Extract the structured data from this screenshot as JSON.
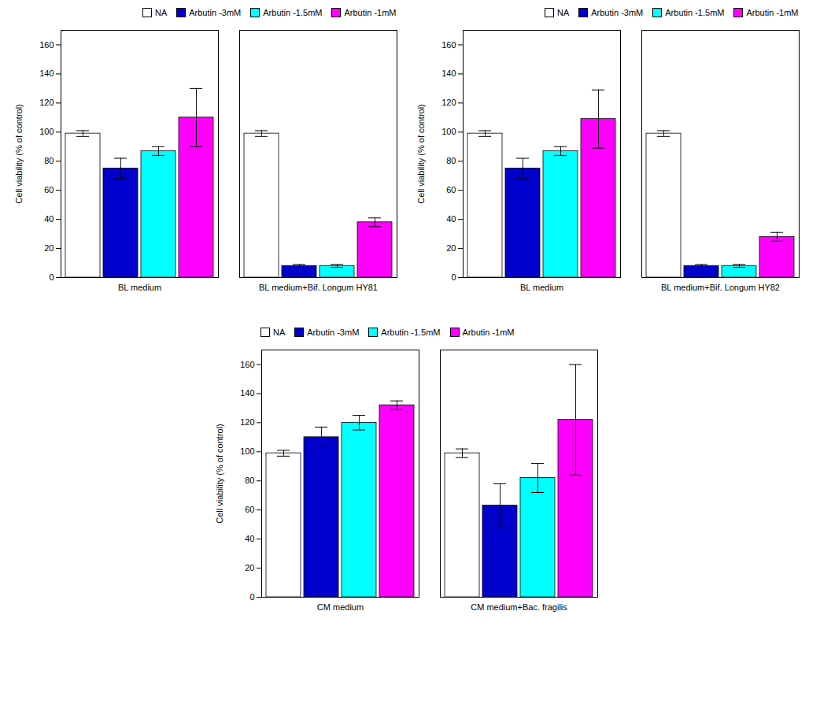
{
  "chart_data": [
    {
      "type": "bar",
      "categories": [
        "BL medium",
        "BL medium+Bif. Longum HY81"
      ],
      "series": [
        {
          "name": "NA",
          "color": "white",
          "values": [
            99,
            99
          ],
          "errors": [
            2,
            2
          ]
        },
        {
          "name": "Arbutin -3mM",
          "color": "#0000CC",
          "values": [
            75,
            8
          ],
          "errors": [
            7,
            1
          ]
        },
        {
          "name": "Arbutin -1.5mM",
          "color": "#00FFFF",
          "values": [
            87,
            8
          ],
          "errors": [
            3,
            1
          ]
        },
        {
          "name": "Arbutin -1mM",
          "color": "#FF00FF",
          "values": [
            110,
            38
          ],
          "errors": [
            20,
            3
          ]
        }
      ],
      "ylabel": "Cell viability (% of control)",
      "ylim": [
        0,
        170
      ],
      "yticks": [
        0,
        20,
        40,
        60,
        80,
        100,
        120,
        140,
        160
      ],
      "grid": false,
      "legend": "upper right"
    },
    {
      "type": "bar",
      "categories": [
        "BL medium",
        "BL medium+Bif. Longum HY82"
      ],
      "series": [
        {
          "name": "NA",
          "color": "white",
          "values": [
            99,
            99
          ],
          "errors": [
            2,
            2
          ]
        },
        {
          "name": "Arbutin -3mM",
          "color": "#0000CC",
          "values": [
            75,
            8
          ],
          "errors": [
            7,
            1
          ]
        },
        {
          "name": "Arbutin -1.5mM",
          "color": "#00FFFF",
          "values": [
            87,
            8
          ],
          "errors": [
            3,
            1
          ]
        },
        {
          "name": "Arbutin -1mM",
          "color": "#FF00FF",
          "values": [
            109,
            28
          ],
          "errors": [
            20,
            3
          ]
        }
      ],
      "ylabel": "Cell viability (% of control)",
      "ylim": [
        0,
        170
      ],
      "yticks": [
        0,
        20,
        40,
        60,
        80,
        100,
        120,
        140,
        160
      ],
      "grid": false,
      "legend": "upper right"
    },
    {
      "type": "bar",
      "categories": [
        "CM medium",
        "CM medium+Bac. fragilis"
      ],
      "series": [
        {
          "name": "NA",
          "color": "white",
          "values": [
            99,
            99
          ],
          "errors": [
            2,
            3
          ]
        },
        {
          "name": "Arbutin -3mM",
          "color": "#0000CC",
          "values": [
            110,
            63
          ],
          "errors": [
            7,
            15
          ]
        },
        {
          "name": "Arbutin -1.5mM",
          "color": "#00FFFF",
          "values": [
            120,
            82
          ],
          "errors": [
            5,
            10
          ]
        },
        {
          "name": "Arbutin -1mM",
          "color": "#FF00FF",
          "values": [
            132,
            122
          ],
          "errors": [
            3,
            38
          ]
        }
      ],
      "ylabel": "Cell viability (% of control)",
      "ylim": [
        0,
        170
      ],
      "yticks": [
        0,
        20,
        40,
        60,
        80,
        100,
        120,
        140,
        160
      ],
      "grid": false,
      "legend": "upper left"
    }
  ]
}
